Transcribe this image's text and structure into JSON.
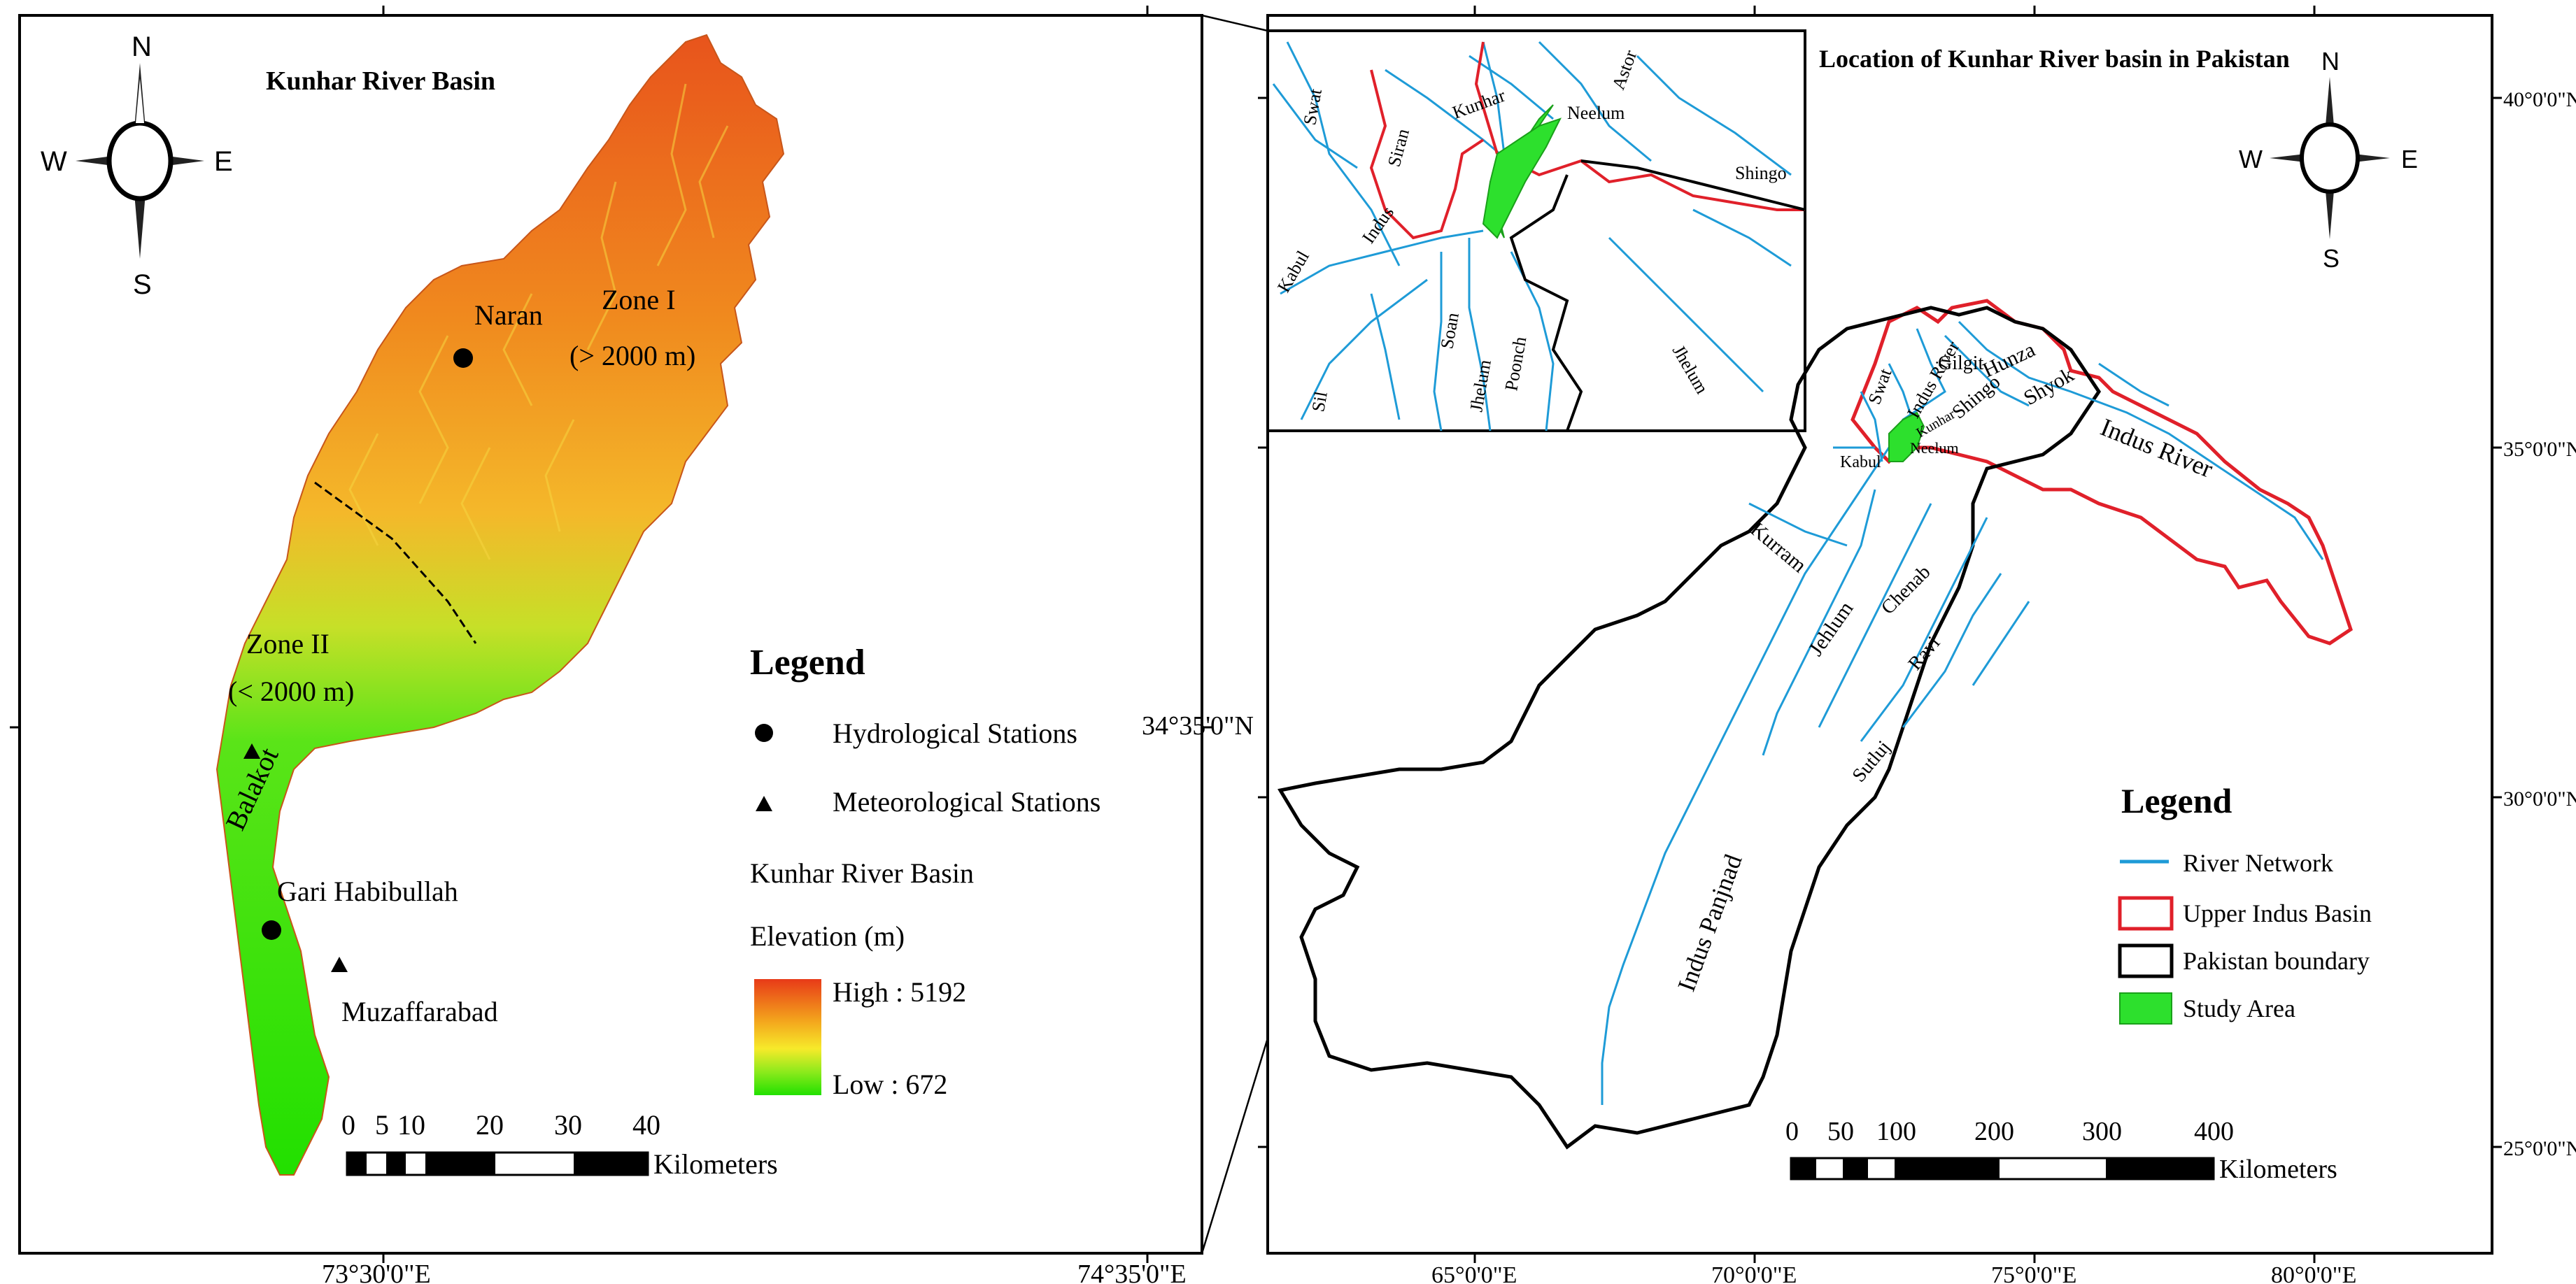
{
  "left_panel": {
    "title": "Kunhar River Basin",
    "compass": {
      "n": "N",
      "s": "S",
      "e": "E",
      "w": "W"
    },
    "labels": {
      "naran": "Naran",
      "zone1": "Zone I",
      "zone1_range": "(> 2000 m)",
      "zone2": "Zone II",
      "zone2_range": "(< 2000 m)",
      "balakot": "Balakot",
      "gari": "Gari Habibullah",
      "muzaffarabad": "Muzaffarabad"
    },
    "legend": {
      "heading": "Legend",
      "hydro": "Hydrological Stations",
      "meteo": "Meteorological Stations",
      "basin": "Kunhar River Basin",
      "elevation": "Elevation (m)",
      "high": "High : 5192",
      "low": "Low : 672"
    },
    "scale": {
      "ticks": [
        "0",
        "5",
        "10",
        "20",
        "30",
        "40"
      ],
      "unit": "Kilometers"
    },
    "coords": {
      "lon1": "73°30'0\"E",
      "lon2": "74°35'0\"E",
      "lat1": "34°35'0\"N"
    }
  },
  "right_panel": {
    "title": "Location of Kunhar River basin in Pakistan",
    "compass": {
      "n": "N",
      "s": "S",
      "e": "E",
      "w": "W"
    },
    "inset_rivers": [
      "Swat",
      "Siran",
      "Kunhar",
      "Neelum",
      "Astor",
      "Shingo",
      "Kabul",
      "Indus",
      "Sil",
      "Soan",
      "Jhelum",
      "Poonch",
      "Jhelum"
    ],
    "map_rivers": [
      "Gilgit",
      "Hunza",
      "Shyok",
      "Indus River",
      "Shingo",
      "Swat",
      "Kabul",
      "Neelum",
      "Kunhar",
      "Indus River",
      "Kurram",
      "Jehlum",
      "Chenab",
      "Ravi",
      "Sutluj",
      "Indus Panjnad"
    ],
    "legend": {
      "heading": "Legend",
      "river": "River Network",
      "uib": "Upper Indus Basin",
      "boundary": "Pakistan boundary",
      "study": "Study Area"
    },
    "scale": {
      "ticks": [
        "0",
        "50",
        "100",
        "200",
        "300",
        "400"
      ],
      "unit": "Kilometers"
    },
    "lon_ticks": [
      "65°0'0\"E",
      "70°0'0\"E",
      "75°0'0\"E",
      "80°0'0\"E"
    ],
    "lat_ticks": [
      "40°0'0\"N",
      "35°0'0\"N",
      "30°0'0\"N",
      "25°0'0\"N"
    ]
  },
  "colors": {
    "river": "#1e9bd7",
    "upper_indus": "#e0202a",
    "study_area": "#2de02d",
    "elev_high": "#e8401a",
    "elev_low": "#22e000"
  }
}
